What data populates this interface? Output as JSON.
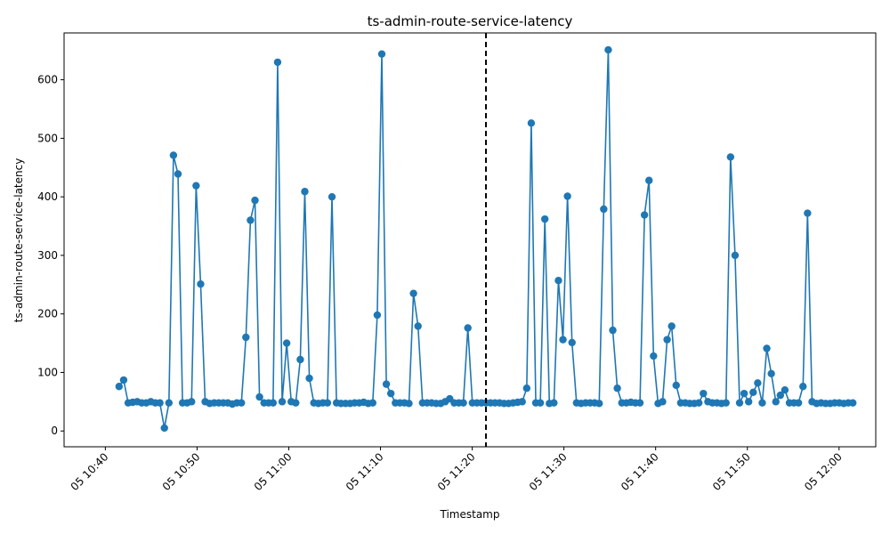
{
  "chart_data": {
    "type": "line",
    "title": "ts-admin-route-service-latency",
    "xlabel": "Timestamp",
    "ylabel": "ts-admin-route-service-latency",
    "grid": false,
    "legend": "none",
    "line_color": "#1f77b4",
    "marker": "circle",
    "series_color": "#1f77b4",
    "vline": {
      "time": "11:21.5",
      "color": "#000000",
      "style": "dashed"
    },
    "xlim": [
      "10:35.5",
      "12:04"
    ],
    "ylim": [
      -27,
      680
    ],
    "x_ticks": [
      "05 10:40",
      "05 10:50",
      "05 11:00",
      "05 11:10",
      "05 11:20",
      "05 11:30",
      "05 11:40",
      "05 11:50",
      "05 12:00"
    ],
    "y_ticks": [
      0,
      100,
      200,
      300,
      400,
      500,
      600
    ],
    "values": [
      76,
      87,
      48,
      49,
      50,
      48,
      48,
      50,
      48,
      48,
      5,
      48,
      471,
      439,
      48,
      48,
      50,
      419,
      251,
      50,
      47,
      48,
      48,
      48,
      48,
      46,
      48,
      48,
      160,
      360,
      394,
      58,
      48,
      48,
      48,
      630,
      50,
      150,
      50,
      48,
      122,
      409,
      90,
      48,
      47,
      48,
      48,
      400,
      48,
      47,
      47,
      47,
      48,
      48,
      49,
      47,
      48,
      198,
      644,
      80,
      64,
      48,
      48,
      48,
      47,
      235,
      179,
      48,
      48,
      48,
      47,
      47,
      50,
      55,
      48,
      48,
      48,
      176,
      48,
      48,
      48,
      48,
      48,
      48,
      48,
      47,
      47,
      48,
      49,
      50,
      73,
      526,
      48,
      48,
      362,
      47,
      48,
      257,
      156,
      401,
      151,
      48,
      47,
      48,
      48,
      48,
      47,
      379,
      651,
      172,
      73,
      48,
      48,
      49,
      48,
      48,
      369,
      428,
      128,
      47,
      50,
      156,
      179,
      78,
      48,
      48,
      47,
      47,
      48,
      64,
      50,
      48,
      48,
      47,
      48,
      468,
      300,
      48,
      64,
      50,
      66,
      82,
      48,
      141,
      98,
      50,
      61,
      70,
      48,
      48,
      48,
      76,
      372,
      50,
      47,
      48,
      47,
      47,
      48,
      48,
      47,
      48,
      48
    ]
  }
}
